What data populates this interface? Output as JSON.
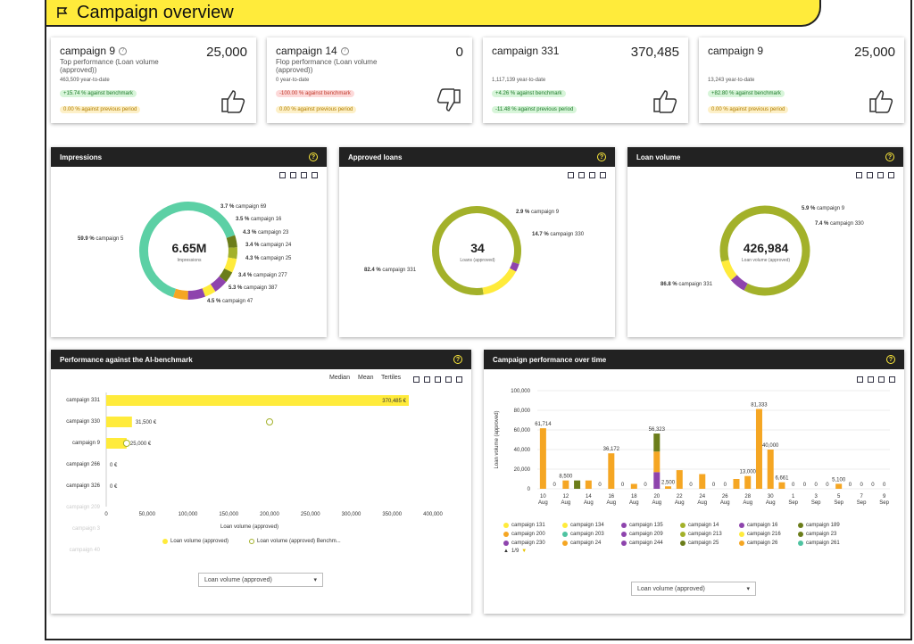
{
  "header": {
    "title": "Campaign overview"
  },
  "kpis": [
    {
      "name": "campaign 9",
      "value": "25,000",
      "desc": "Top performance (Loan volume (approved))",
      "ytd": "463,509 year-to-date",
      "chip1": "+15.74 % against benchmark",
      "chip2": "0.00 % against previous period",
      "thumb": "thumbs-up-icon"
    },
    {
      "name": "campaign 14",
      "value": "0",
      "desc": "Flop performance (Loan volume (approved))",
      "ytd": "0 year-to-date",
      "chip1": "-100.00 % against benchmark",
      "chip2": "0.00 % against previous period",
      "thumb": "thumbs-down-icon"
    },
    {
      "name": "campaign 331",
      "value": "370,485",
      "desc": "",
      "ytd": "1,117,139 year-to-date",
      "chip1": "+4.26 % against benchmark",
      "chip2": "-11.48 % against previous period",
      "thumb": "thumbs-up-icon"
    },
    {
      "name": "campaign 9",
      "value": "25,000",
      "desc": "",
      "ytd": "13,243 year-to-date",
      "chip1": "+82.80 % against benchmark",
      "chip2": "0.00 % against previous period",
      "thumb": "thumbs-up-icon"
    }
  ],
  "impressions": {
    "title": "Impressions",
    "center_value": "6.65M",
    "center_label": "Impressions",
    "labels": [
      {
        "pct": "3.7 %",
        "name": "campaign 69"
      },
      {
        "pct": "3.5 %",
        "name": "campaign 16"
      },
      {
        "pct": "4.3 %",
        "name": "campaign 23"
      },
      {
        "pct": "3.4 %",
        "name": "campaign 24"
      },
      {
        "pct": "4.3 %",
        "name": "campaign 25"
      },
      {
        "pct": "3.4 %",
        "name": "campaign 277"
      },
      {
        "pct": "5.3 %",
        "name": "campaign 387"
      },
      {
        "pct": "4.5 %",
        "name": "campaign 47"
      },
      {
        "pct": "59.9 %",
        "name": "campaign 5"
      }
    ]
  },
  "approved": {
    "title": "Approved loans",
    "center_value": "34",
    "center_label": "Loans (approved)",
    "labels": [
      {
        "pct": "2.9 %",
        "name": "campaign 9"
      },
      {
        "pct": "14.7 %",
        "name": "campaign 330"
      },
      {
        "pct": "82.4 %",
        "name": "campaign 331"
      }
    ]
  },
  "volume": {
    "title": "Loan volume",
    "center_value": "426,984",
    "center_label": "Loan volume (approved)",
    "labels": [
      {
        "pct": "5.9 %",
        "name": "campaign 9"
      },
      {
        "pct": "7.4 %",
        "name": "campaign 330"
      },
      {
        "pct": "86.8 %",
        "name": "campaign 331"
      }
    ]
  },
  "benchmark": {
    "title": "Performance against the AI-benchmark",
    "buttons": [
      "Median",
      "Mean",
      "Tertiles"
    ],
    "rows": [
      {
        "label": "campaign 331",
        "value": 370485,
        "value_label": "370,485 €"
      },
      {
        "label": "campaign 330",
        "value": 31500,
        "value_label": "31,500 €"
      },
      {
        "label": "campaign 9",
        "value": 25000,
        "value_label": "25,000 €"
      },
      {
        "label": "campaign 266",
        "value": 0,
        "value_label": "0 €"
      },
      {
        "label": "campaign 326",
        "value": 0,
        "value_label": "0 €"
      }
    ],
    "faded_rows": [
      "campaign 209",
      "campaign 3",
      "campaign 40"
    ],
    "ticks": [
      "0",
      "50,000",
      "100,000",
      "150,000",
      "200,000",
      "250,000",
      "300,000",
      "350,000",
      "400,000"
    ],
    "xlabel": "Loan volume (approved)",
    "legend": [
      "Loan volume (approved)",
      "Loan volume (approved) Benchm..."
    ],
    "select": "Loan volume (approved)"
  },
  "over_time": {
    "title": "Campaign performance over time",
    "ylabel": "Loan volume (approved)",
    "yticks": [
      "100,000",
      "80,000",
      "60,000",
      "40,000",
      "20,000",
      "0"
    ],
    "xticks": [
      "10 Aug",
      "12 Aug",
      "14 Aug",
      "16 Aug",
      "18 Aug",
      "20 Aug",
      "22 Aug",
      "24 Aug",
      "26 Aug",
      "28 Aug",
      "30 Aug",
      "1 Sep",
      "3 Sep",
      "5 Sep",
      "7 Sep",
      "9 Sep"
    ],
    "legend": [
      {
        "name": "campaign 131",
        "color": "#ffeb3b"
      },
      {
        "name": "campaign 134",
        "color": "#ffeb3b"
      },
      {
        "name": "campaign 135",
        "color": "#8e44ad"
      },
      {
        "name": "campaign 14",
        "color": "#a3b12a"
      },
      {
        "name": "campaign 16",
        "color": "#8e44ad"
      },
      {
        "name": "campaign 189",
        "color": "#6b7d1a"
      },
      {
        "name": "campaign 200",
        "color": "#f5a623"
      },
      {
        "name": "campaign 203",
        "color": "#4fc3a1"
      },
      {
        "name": "campaign 209",
        "color": "#8e44ad"
      },
      {
        "name": "campaign 213",
        "color": "#a3b12a"
      },
      {
        "name": "campaign 216",
        "color": "#ffeb3b"
      },
      {
        "name": "campaign 23",
        "color": "#6b7d1a"
      },
      {
        "name": "campaign 230",
        "color": "#8e44ad"
      },
      {
        "name": "campaign 24",
        "color": "#f5a623"
      },
      {
        "name": "campaign 244",
        "color": "#8e44ad"
      },
      {
        "name": "campaign 25",
        "color": "#6b7d1a"
      },
      {
        "name": "campaign 26",
        "color": "#f5a623"
      },
      {
        "name": "campaign 261",
        "color": "#4fc3a1"
      }
    ],
    "pager": "1/9",
    "select": "Loan volume (approved)"
  },
  "chart_data": [
    {
      "type": "pie",
      "title": "Impressions",
      "categories": [
        "campaign 5",
        "campaign 69",
        "campaign 16",
        "campaign 23",
        "campaign 24",
        "campaign 25",
        "campaign 277",
        "campaign 387",
        "campaign 47"
      ],
      "values": [
        59.9,
        3.7,
        3.5,
        4.3,
        3.4,
        4.3,
        3.4,
        5.3,
        4.5
      ]
    },
    {
      "type": "pie",
      "title": "Approved loans",
      "categories": [
        "campaign 331",
        "campaign 9",
        "campaign 330"
      ],
      "values": [
        82.4,
        2.9,
        14.7
      ]
    },
    {
      "type": "pie",
      "title": "Loan volume",
      "categories": [
        "campaign 331",
        "campaign 9",
        "campaign 330"
      ],
      "values": [
        86.8,
        5.9,
        7.4
      ]
    },
    {
      "type": "bar",
      "title": "Performance against the AI-benchmark",
      "categories": [
        "campaign 331",
        "campaign 330",
        "campaign 9",
        "campaign 266",
        "campaign 326"
      ],
      "values": [
        370485,
        31500,
        25000,
        0,
        0
      ],
      "benchmark": [
        null,
        200000,
        25000,
        null,
        null
      ],
      "xlabel": "Loan volume (approved)",
      "xlim": [
        0,
        400000
      ]
    },
    {
      "type": "bar",
      "title": "Campaign performance over time",
      "ylabel": "Loan volume (approved)",
      "ylim": [
        0,
        100000
      ],
      "x": [
        "10 Aug",
        "11 Aug",
        "12 Aug",
        "13 Aug",
        "14 Aug",
        "15 Aug",
        "16 Aug",
        "17 Aug",
        "18 Aug",
        "19 Aug",
        "20 Aug",
        "21 Aug",
        "22 Aug",
        "23 Aug",
        "24 Aug",
        "25 Aug",
        "26 Aug",
        "27 Aug",
        "28 Aug",
        "29 Aug",
        "30 Aug",
        "31 Aug",
        "1 Sep",
        "2 Sep",
        "3 Sep",
        "4 Sep",
        "5 Sep",
        "6 Sep",
        "7 Sep",
        "8 Sep",
        "9 Sep"
      ],
      "values": [
        61714,
        0,
        8500,
        8500,
        8500,
        0,
        36172,
        0,
        5000,
        0,
        56323,
        2500,
        19000,
        0,
        15000,
        0,
        0,
        10000,
        13000,
        81333,
        40000,
        6661,
        0,
        0,
        0,
        0,
        5100,
        0,
        0,
        0,
        0
      ],
      "value_labels": [
        "61,714",
        "0",
        "8,500",
        "",
        "",
        "0",
        "36,172",
        "0",
        "",
        "0",
        "56,323",
        "2,500",
        "",
        "0",
        "",
        "0",
        "0",
        "",
        "13,000",
        "81,333",
        "40,000",
        "6,661",
        "0",
        "0",
        "0",
        "0",
        "5,100",
        "0",
        "0",
        "0",
        "0"
      ]
    }
  ]
}
